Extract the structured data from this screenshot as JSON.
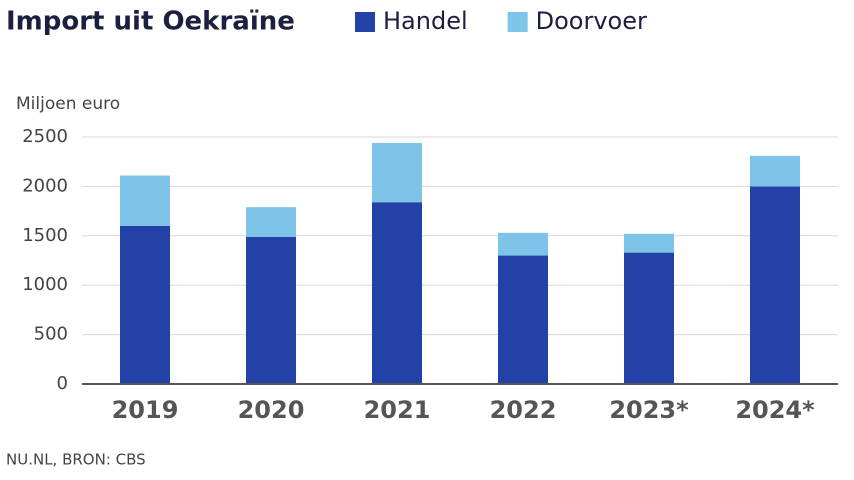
{
  "chart_data": {
    "type": "stacked_bar",
    "title": "Import uit Oekraïne",
    "y_label": "Miljoen euro",
    "source": "NU.NL, BRON: CBS",
    "categories": [
      "2019",
      "2020",
      "2021",
      "2022",
      "2023*",
      "2024*"
    ],
    "series": [
      {
        "name": "Handel",
        "color": "#2342a8",
        "values": [
          1600,
          1490,
          1840,
          1300,
          1330,
          2000
        ]
      },
      {
        "name": "Doorvoer",
        "color": "#7dc4e8",
        "values": [
          510,
          300,
          600,
          230,
          190,
          310
        ]
      }
    ],
    "ylim": [
      0,
      2500
    ],
    "yticks": [
      0,
      500,
      1000,
      1500,
      2000,
      2500
    ],
    "grid": true
  }
}
